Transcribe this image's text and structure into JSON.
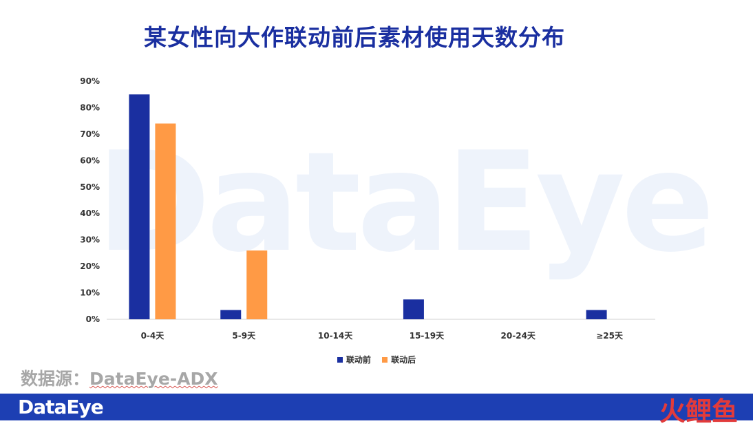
{
  "page": {
    "title": "某女性向大作联动前后素材使用天数分布",
    "source_label": "数据源：",
    "source_name": "DataEye-ADX",
    "watermark": "DataEye",
    "footer_brand": "DataEye",
    "footer_logo": [
      "火",
      "鲤",
      "鱼"
    ]
  },
  "colors": {
    "before": "#1a2fa0",
    "after": "#ff9a45",
    "footer_bg": "#1d3fb3",
    "title": "#1a2fa0"
  },
  "chart_data": {
    "type": "bar",
    "title": "某女性向大作联动前后素材使用天数分布",
    "categories": [
      "0-4天",
      "5-9天",
      "10-14天",
      "15-19天",
      "20-24天",
      "≥25天"
    ],
    "series": [
      {
        "name": "联动前",
        "color": "#1a2fa0",
        "values": [
          85,
          3.5,
          0,
          7.5,
          0,
          3.5
        ]
      },
      {
        "name": "联动后",
        "color": "#ff9a45",
        "values": [
          74,
          26,
          0,
          0,
          0,
          0
        ]
      }
    ],
    "yticks": [
      "0%",
      "10%",
      "20%",
      "30%",
      "40%",
      "50%",
      "60%",
      "70%",
      "80%",
      "90%"
    ],
    "ylim": [
      0,
      90
    ],
    "grid": false,
    "legend": "bottom"
  }
}
